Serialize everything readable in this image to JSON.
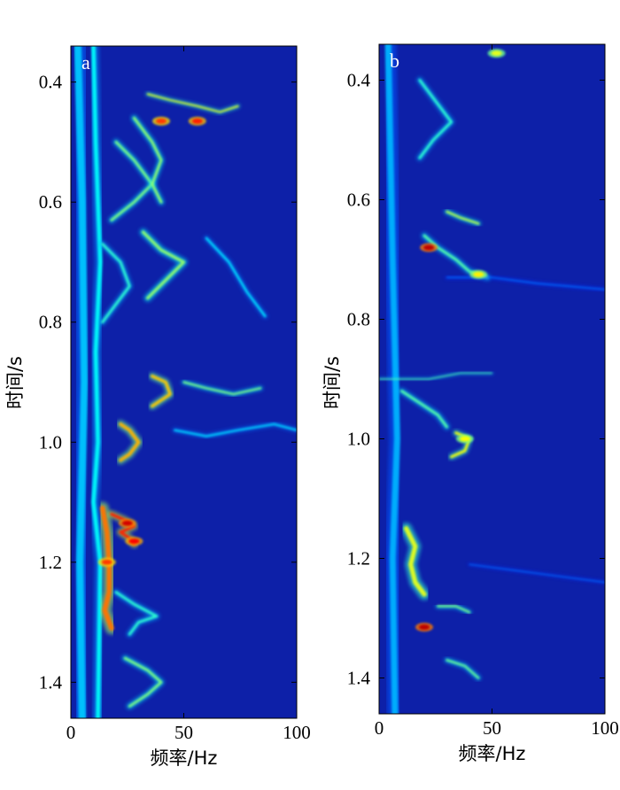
{
  "chart_data": [
    {
      "type": "heatmap",
      "panel_label": "a",
      "xlabel": "频率/Hz",
      "ylabel": "时间/s",
      "xlim": [
        0,
        100
      ],
      "ylim": [
        0.34,
        1.46
      ],
      "y_inverted": true,
      "xticks": [
        0,
        50,
        100
      ],
      "yticks": [
        0.4,
        0.6,
        0.8,
        1.0,
        1.2,
        1.4
      ],
      "xtick_labels": [
        "0",
        "50",
        "100"
      ],
      "ytick_labels": [
        "0.4",
        "0.6",
        "0.8",
        "1.0",
        "1.2",
        "1.4"
      ],
      "colormap": "jet",
      "background_color": "#0d20a8",
      "ridges": [
        {
          "points": [
            [
              3,
              0.34
            ],
            [
              5,
              0.6
            ],
            [
              6,
              0.9
            ],
            [
              4,
              1.2
            ],
            [
              5,
              1.46
            ]
          ],
          "level": 0.32,
          "width": 3.5
        },
        {
          "points": [
            [
              10,
              0.34
            ],
            [
              11,
              0.5
            ],
            [
              13,
              0.7
            ],
            [
              11,
              0.85
            ],
            [
              12,
              1.0
            ],
            [
              10,
              1.1
            ],
            [
              13,
              1.2
            ],
            [
              12,
              1.46
            ]
          ],
          "level": 0.38,
          "width": 2
        },
        {
          "points": [
            [
              20,
              0.5
            ],
            [
              28,
              0.53
            ],
            [
              36,
              0.57
            ],
            [
              28,
              0.6
            ],
            [
              18,
              0.63
            ]
          ],
          "level": 0.5,
          "width": 1.2
        },
        {
          "points": [
            [
              14,
              0.67
            ],
            [
              22,
              0.7
            ],
            [
              26,
              0.74
            ],
            [
              20,
              0.77
            ],
            [
              14,
              0.8
            ]
          ],
          "level": 0.42,
          "width": 1.2
        },
        {
          "points": [
            [
              28,
              0.46
            ],
            [
              36,
              0.5
            ],
            [
              40,
              0.53
            ],
            [
              36,
              0.57
            ],
            [
              40,
              0.6
            ]
          ],
          "level": 0.52,
          "width": 1.2
        },
        {
          "points": [
            [
              32,
              0.65
            ],
            [
              40,
              0.68
            ],
            [
              50,
              0.7
            ],
            [
              42,
              0.73
            ],
            [
              34,
              0.76
            ]
          ],
          "level": 0.52,
          "width": 1.4
        },
        {
          "points": [
            [
              36,
              0.89
            ],
            [
              42,
              0.9
            ],
            [
              44,
              0.92
            ],
            [
              36,
              0.94
            ]
          ],
          "level": 0.68,
          "width": 1.4
        },
        {
          "points": [
            [
              22,
              0.97
            ],
            [
              26,
              0.98
            ],
            [
              30,
              1.0
            ],
            [
              26,
              1.02
            ],
            [
              22,
              1.03
            ]
          ],
          "level": 0.7,
          "width": 1.6
        },
        {
          "points": [
            [
              14,
              1.11
            ],
            [
              16,
              1.15
            ],
            [
              17,
              1.2
            ],
            [
              17,
              1.25
            ],
            [
              15,
              1.28
            ],
            [
              18,
              1.31
            ]
          ],
          "level": 0.76,
          "width": 2.4
        },
        {
          "points": [
            [
              18,
              1.12
            ],
            [
              24,
              1.13
            ],
            [
              28,
              1.14
            ],
            [
              22,
              1.15
            ],
            [
              26,
              1.16
            ],
            [
              28,
              1.17
            ]
          ],
          "level": 0.84,
          "width": 1.4
        },
        {
          "points": [
            [
              20,
              1.25
            ],
            [
              28,
              1.27
            ],
            [
              38,
              1.29
            ],
            [
              30,
              1.3
            ],
            [
              26,
              1.32
            ]
          ],
          "level": 0.42,
          "width": 1.2
        },
        {
          "points": [
            [
              24,
              1.36
            ],
            [
              34,
              1.38
            ],
            [
              40,
              1.4
            ],
            [
              34,
              1.42
            ],
            [
              26,
              1.44
            ]
          ],
          "level": 0.5,
          "width": 1.2
        },
        {
          "points": [
            [
              34,
              0.42
            ],
            [
              44,
              0.43
            ],
            [
              56,
              0.44
            ],
            [
              66,
              0.45
            ],
            [
              74,
              0.44
            ]
          ],
          "level": 0.6,
          "width": 0.8
        },
        {
          "points": [
            [
              60,
              0.66
            ],
            [
              70,
              0.7
            ],
            [
              78,
              0.75
            ],
            [
              86,
              0.79
            ]
          ],
          "level": 0.35,
          "width": 1.0
        },
        {
          "points": [
            [
              50,
              0.9
            ],
            [
              60,
              0.91
            ],
            [
              72,
              0.92
            ],
            [
              84,
              0.91
            ]
          ],
          "level": 0.5,
          "width": 0.9
        },
        {
          "points": [
            [
              46,
              0.98
            ],
            [
              60,
              0.99
            ],
            [
              74,
              0.98
            ],
            [
              90,
              0.97
            ],
            [
              100,
              0.98
            ]
          ],
          "level": 0.34,
          "width": 0.9
        }
      ],
      "hotspots": [
        {
          "x": 25,
          "y": 1.135,
          "level": 0.92
        },
        {
          "x": 28,
          "y": 1.165,
          "level": 0.88
        },
        {
          "x": 56,
          "y": 0.465,
          "level": 0.85
        },
        {
          "x": 40,
          "y": 0.465,
          "level": 0.82
        },
        {
          "x": 16,
          "y": 1.2,
          "level": 0.82
        }
      ]
    },
    {
      "type": "heatmap",
      "panel_label": "b",
      "xlabel": "频率/Hz",
      "ylabel": "时间/s",
      "xlim": [
        0,
        100
      ],
      "ylim": [
        0.34,
        1.46
      ],
      "y_inverted": true,
      "xticks": [
        0,
        50,
        100
      ],
      "yticks": [
        0.4,
        0.6,
        0.8,
        1.0,
        1.2,
        1.4
      ],
      "xtick_labels": [
        "0",
        "50",
        "100"
      ],
      "ytick_labels": [
        "0.4",
        "0.6",
        "0.8",
        "1.0",
        "1.2",
        "1.4"
      ],
      "colormap": "jet",
      "background_color": "#0d20a8",
      "ridges": [
        {
          "points": [
            [
              4,
              0.34
            ],
            [
              6,
              0.7
            ],
            [
              8,
              1.0
            ],
            [
              6,
              1.2
            ],
            [
              7,
              1.46
            ]
          ],
          "level": 0.3,
          "width": 3
        },
        {
          "points": [
            [
              18,
              0.4
            ],
            [
              26,
              0.44
            ],
            [
              32,
              0.47
            ],
            [
              24,
              0.5
            ],
            [
              18,
              0.53
            ]
          ],
          "level": 0.42,
          "width": 1.2
        },
        {
          "points": [
            [
              20,
              0.66
            ],
            [
              26,
              0.68
            ],
            [
              34,
              0.7
            ],
            [
              40,
              0.72
            ],
            [
              48,
              0.73
            ]
          ],
          "level": 0.46,
          "width": 1.2
        },
        {
          "points": [
            [
              30,
              0.62
            ],
            [
              36,
              0.63
            ],
            [
              44,
              0.64
            ]
          ],
          "level": 0.56,
          "width": 1.0
        },
        {
          "points": [
            [
              10,
              0.92
            ],
            [
              18,
              0.94
            ],
            [
              26,
              0.96
            ],
            [
              30,
              0.98
            ]
          ],
          "level": 0.46,
          "width": 1.2
        },
        {
          "points": [
            [
              34,
              0.99
            ],
            [
              40,
              1.0
            ],
            [
              38,
              1.02
            ],
            [
              32,
              1.03
            ]
          ],
          "level": 0.62,
          "width": 1.2
        },
        {
          "points": [
            [
              12,
              1.15
            ],
            [
              16,
              1.18
            ],
            [
              14,
              1.21
            ],
            [
              16,
              1.24
            ],
            [
              20,
              1.26
            ]
          ],
          "level": 0.6,
          "width": 2.2
        },
        {
          "points": [
            [
              26,
              1.28
            ],
            [
              34,
              1.28
            ],
            [
              40,
              1.29
            ]
          ],
          "level": 0.5,
          "width": 0.9
        },
        {
          "points": [
            [
              30,
              1.37
            ],
            [
              38,
              1.38
            ],
            [
              44,
              1.4
            ]
          ],
          "level": 0.48,
          "width": 1.0
        },
        {
          "points": [
            [
              0,
              0.9
            ],
            [
              10,
              0.9
            ],
            [
              22,
              0.9
            ],
            [
              36,
              0.89
            ],
            [
              50,
              0.89
            ]
          ],
          "level": 0.46,
          "width": 0.5
        },
        {
          "points": [
            [
              30,
              0.73
            ],
            [
              50,
              0.73
            ],
            [
              70,
              0.74
            ],
            [
              100,
              0.75
            ]
          ],
          "level": 0.24,
          "width": 0.6
        },
        {
          "points": [
            [
              40,
              1.21
            ],
            [
              60,
              1.22
            ],
            [
              80,
              1.23
            ],
            [
              100,
              1.24
            ]
          ],
          "level": 0.24,
          "width": 0.5
        }
      ],
      "hotspots": [
        {
          "x": 22,
          "y": 0.68,
          "level": 0.94
        },
        {
          "x": 20,
          "y": 1.315,
          "level": 0.94
        },
        {
          "x": 52,
          "y": 0.355,
          "level": 0.6
        },
        {
          "x": 44,
          "y": 0.725,
          "level": 0.64
        },
        {
          "x": 38,
          "y": 1.0,
          "level": 0.62
        }
      ]
    }
  ]
}
